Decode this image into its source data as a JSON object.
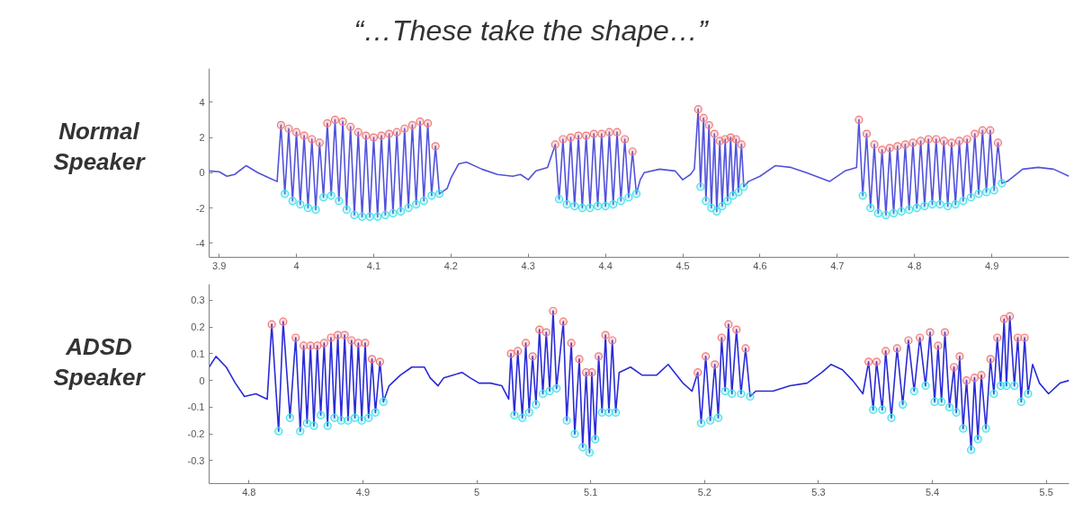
{
  "chart_data": [
    {
      "type": "line",
      "title": "“…These take the shape…”",
      "ylabel": "Normal Speaker",
      "xlim": [
        3.887,
        5.0
      ],
      "ylim": [
        -4.8,
        5.9
      ],
      "xticks": [
        3.9,
        4,
        4.1,
        4.2,
        4.3,
        4.4,
        4.5,
        4.6,
        4.7,
        4.8,
        4.9
      ],
      "yticks": [
        -4,
        -2,
        0,
        2,
        4
      ],
      "grid": false,
      "series": [
        {
          "type": "line",
          "color": "#5252dc",
          "x": [
            3.887,
            3.9,
            3.91,
            3.92,
            3.935,
            3.95,
            3.965,
            3.975,
            3.98,
            3.985,
            3.99,
            3.995,
            4.0,
            4.005,
            4.01,
            4.015,
            4.02,
            4.025,
            4.03,
            4.035,
            4.04,
            4.045,
            4.05,
            4.055,
            4.06,
            4.065,
            4.07,
            4.075,
            4.08,
            4.085,
            4.09,
            4.095,
            4.1,
            4.105,
            4.11,
            4.115,
            4.12,
            4.125,
            4.13,
            4.135,
            4.14,
            4.145,
            4.15,
            4.155,
            4.16,
            4.165,
            4.17,
            4.175,
            4.18,
            4.185,
            4.195,
            4.2,
            4.21,
            4.22,
            4.24,
            4.26,
            4.28,
            4.29,
            4.3,
            4.31,
            4.325,
            4.335,
            4.34,
            4.345,
            4.35,
            4.355,
            4.36,
            4.365,
            4.37,
            4.375,
            4.38,
            4.385,
            4.39,
            4.395,
            4.4,
            4.405,
            4.41,
            4.415,
            4.42,
            4.425,
            4.43,
            4.435,
            4.44,
            4.445,
            4.45,
            4.47,
            4.49,
            4.5,
            4.51,
            4.515,
            4.52,
            4.523,
            4.527,
            4.53,
            4.534,
            4.537,
            4.541,
            4.544,
            4.548,
            4.551,
            4.555,
            4.558,
            4.562,
            4.565,
            4.569,
            4.572,
            4.576,
            4.579,
            4.585,
            4.6,
            4.62,
            4.64,
            4.66,
            4.69,
            4.71,
            4.725,
            4.728,
            4.733,
            4.738,
            4.743,
            4.748,
            4.753,
            4.758,
            4.763,
            4.768,
            4.773,
            4.778,
            4.783,
            4.788,
            4.793,
            4.798,
            4.803,
            4.808,
            4.813,
            4.818,
            4.823,
            4.828,
            4.833,
            4.838,
            4.843,
            4.848,
            4.853,
            4.858,
            4.863,
            4.868,
            4.873,
            4.878,
            4.883,
            4.888,
            4.893,
            4.898,
            4.903,
            4.908,
            4.913,
            4.92,
            4.94,
            4.96,
            4.98,
            5.0
          ],
          "values": [
            0.1,
            0.05,
            -0.2,
            -0.1,
            0.4,
            0,
            -0.3,
            -0.5,
            2.7,
            -1.2,
            2.5,
            -1.6,
            2.3,
            -1.8,
            2.1,
            -2.0,
            1.9,
            -2.1,
            1.7,
            -1.4,
            2.8,
            -1.3,
            3.0,
            -1.6,
            2.9,
            -2.1,
            2.6,
            -2.4,
            2.3,
            -2.5,
            2.1,
            -2.5,
            2.0,
            -2.5,
            2.1,
            -2.4,
            2.2,
            -2.3,
            2.3,
            -2.2,
            2.5,
            -2.0,
            2.7,
            -1.8,
            2.9,
            -1.6,
            2.8,
            -1.3,
            1.5,
            -1.2,
            -0.9,
            -0.3,
            0.5,
            0.6,
            0.2,
            -0.1,
            -0.2,
            -0.1,
            -0.4,
            0.1,
            0.3,
            1.6,
            -1.5,
            1.9,
            -1.8,
            2.0,
            -1.9,
            2.1,
            -2.0,
            2.1,
            -2.0,
            2.2,
            -1.9,
            2.2,
            -1.9,
            2.3,
            -1.8,
            2.3,
            -1.6,
            1.9,
            -1.4,
            1.2,
            -1.2,
            -0.4,
            0,
            0.2,
            0.1,
            -0.4,
            -0.1,
            0.2,
            3.6,
            -0.8,
            3.1,
            -1.6,
            2.7,
            -2.0,
            2.2,
            -2.2,
            1.8,
            -1.9,
            1.9,
            -1.6,
            2.0,
            -1.3,
            1.9,
            -1.1,
            1.6,
            -0.8,
            -0.5,
            -0.2,
            0.4,
            0.3,
            0,
            -0.5,
            0.1,
            0.3,
            3.0,
            -1.3,
            2.2,
            -2.0,
            1.6,
            -2.3,
            1.3,
            -2.4,
            1.4,
            -2.3,
            1.5,
            -2.2,
            1.6,
            -2.1,
            1.7,
            -2.0,
            1.8,
            -1.9,
            1.9,
            -1.8,
            1.9,
            -1.8,
            1.8,
            -1.9,
            1.7,
            -1.8,
            1.8,
            -1.6,
            1.9,
            -1.4,
            2.2,
            -1.2,
            2.4,
            -1.1,
            2.4,
            -1.0,
            1.7,
            -0.6,
            -0.5,
            0.2,
            0.3,
            0.2,
            -0.2
          ]
        },
        {
          "type": "scatter",
          "marker": "circle",
          "color": "#f07878",
          "x": [
            3.98,
            3.99,
            4.0,
            4.01,
            4.02,
            4.03,
            4.04,
            4.05,
            4.06,
            4.07,
            4.08,
            4.09,
            4.1,
            4.11,
            4.12,
            4.13,
            4.14,
            4.15,
            4.16,
            4.17,
            4.18,
            4.335,
            4.345,
            4.355,
            4.365,
            4.375,
            4.385,
            4.395,
            4.405,
            4.415,
            4.425,
            4.435,
            4.52,
            4.527,
            4.534,
            4.541,
            4.548,
            4.555,
            4.562,
            4.569,
            4.576,
            4.728,
            4.738,
            4.748,
            4.758,
            4.768,
            4.778,
            4.788,
            4.798,
            4.808,
            4.818,
            4.828,
            4.838,
            4.848,
            4.858,
            4.868,
            4.878,
            4.888,
            4.898,
            4.908
          ],
          "values": [
            2.7,
            2.5,
            2.3,
            2.1,
            1.9,
            1.7,
            2.8,
            3.0,
            2.9,
            2.6,
            2.3,
            2.1,
            2.0,
            2.1,
            2.2,
            2.3,
            2.5,
            2.7,
            2.9,
            2.8,
            1.5,
            1.6,
            1.9,
            2.0,
            2.1,
            2.1,
            2.2,
            2.2,
            2.3,
            2.3,
            1.9,
            1.2,
            3.6,
            3.1,
            2.7,
            2.2,
            1.8,
            1.9,
            2.0,
            1.9,
            1.6,
            3.0,
            2.2,
            1.6,
            1.3,
            1.4,
            1.5,
            1.6,
            1.7,
            1.8,
            1.9,
            1.9,
            1.8,
            1.7,
            1.8,
            1.9,
            2.2,
            2.4,
            2.4,
            1.7
          ]
        },
        {
          "type": "scatter",
          "marker": "circle",
          "color": "#40e0e8",
          "x": [
            3.985,
            3.995,
            4.005,
            4.015,
            4.025,
            4.035,
            4.045,
            4.055,
            4.065,
            4.075,
            4.085,
            4.095,
            4.105,
            4.115,
            4.125,
            4.135,
            4.145,
            4.155,
            4.165,
            4.175,
            4.185,
            4.34,
            4.35,
            4.36,
            4.37,
            4.38,
            4.39,
            4.4,
            4.41,
            4.42,
            4.43,
            4.44,
            4.523,
            4.53,
            4.537,
            4.544,
            4.551,
            4.558,
            4.565,
            4.572,
            4.579,
            4.733,
            4.743,
            4.753,
            4.763,
            4.773,
            4.783,
            4.793,
            4.803,
            4.813,
            4.823,
            4.833,
            4.843,
            4.853,
            4.863,
            4.873,
            4.883,
            4.893,
            4.903,
            4.913
          ],
          "values": [
            -1.2,
            -1.6,
            -1.8,
            -2.0,
            -2.1,
            -1.4,
            -1.3,
            -1.6,
            -2.1,
            -2.4,
            -2.5,
            -2.5,
            -2.5,
            -2.4,
            -2.3,
            -2.2,
            -2.0,
            -1.8,
            -1.6,
            -1.3,
            -1.2,
            -1.5,
            -1.8,
            -1.9,
            -2.0,
            -2.0,
            -1.9,
            -1.9,
            -1.8,
            -1.6,
            -1.4,
            -1.2,
            -0.8,
            -1.6,
            -2.0,
            -2.2,
            -1.9,
            -1.6,
            -1.3,
            -1.1,
            -0.8,
            -1.3,
            -2.0,
            -2.3,
            -2.4,
            -2.3,
            -2.2,
            -2.1,
            -2.0,
            -1.9,
            -1.8,
            -1.8,
            -1.9,
            -1.8,
            -1.6,
            -1.4,
            -1.2,
            -1.1,
            -1.0,
            -0.6
          ]
        }
      ]
    },
    {
      "type": "line",
      "ylabel": "ADSD Speaker",
      "xlim": [
        4.765,
        5.52
      ],
      "ylim": [
        -0.386,
        0.36
      ],
      "xticks": [
        4.8,
        4.9,
        5,
        5.1,
        5.2,
        5.3,
        5.4,
        5.5
      ],
      "yticks": [
        -0.3,
        -0.2,
        -0.1,
        0,
        0.1,
        0.2,
        0.3
      ],
      "grid": false,
      "series": [
        {
          "type": "line",
          "color": "#2a2ad8",
          "x": [
            4.765,
            4.771,
            4.78,
            4.788,
            4.796,
            4.806,
            4.816,
            4.82,
            4.826,
            4.83,
            4.836,
            4.841,
            4.845,
            4.848,
            4.851,
            4.854,
            4.857,
            4.86,
            4.863,
            4.866,
            4.869,
            4.872,
            4.875,
            4.878,
            4.881,
            4.884,
            4.887,
            4.89,
            4.893,
            4.896,
            4.899,
            4.902,
            4.905,
            4.908,
            4.911,
            4.915,
            4.918,
            4.923,
            4.933,
            4.943,
            4.954,
            4.959,
            4.966,
            4.971,
            4.979,
            4.987,
            4.994,
            5.002,
            5.012,
            5.022,
            5.028,
            5.03,
            5.033,
            5.036,
            5.04,
            5.043,
            5.046,
            5.049,
            5.052,
            5.055,
            5.058,
            5.061,
            5.064,
            5.067,
            5.07,
            5.076,
            5.079,
            5.083,
            5.086,
            5.09,
            5.093,
            5.096,
            5.099,
            5.101,
            5.104,
            5.107,
            5.11,
            5.113,
            5.116,
            5.119,
            5.122,
            5.125,
            5.135,
            5.145,
            5.158,
            5.168,
            5.181,
            5.189,
            5.194,
            5.197,
            5.201,
            5.205,
            5.209,
            5.212,
            5.215,
            5.218,
            5.221,
            5.224,
            5.228,
            5.232,
            5.236,
            5.24,
            5.245,
            5.26,
            5.275,
            5.29,
            5.303,
            5.311,
            5.321,
            5.33,
            5.339,
            5.344,
            5.348,
            5.351,
            5.356,
            5.359,
            5.364,
            5.369,
            5.374,
            5.379,
            5.384,
            5.389,
            5.394,
            5.398,
            5.402,
            5.405,
            5.408,
            5.411,
            5.415,
            5.419,
            5.421,
            5.424,
            5.427,
            5.43,
            5.434,
            5.437,
            5.44,
            5.443,
            5.447,
            5.451,
            5.454,
            5.457,
            5.46,
            5.463,
            5.465,
            5.468,
            5.472,
            5.475,
            5.478,
            5.481,
            5.484,
            5.488,
            5.494,
            5.502,
            5.512,
            5.52
          ],
          "values": [
            0.05,
            0.09,
            0.05,
            -0.01,
            -0.06,
            -0.05,
            -0.07,
            0.21,
            -0.19,
            0.22,
            -0.14,
            0.16,
            -0.19,
            0.13,
            -0.16,
            0.13,
            -0.17,
            0.13,
            -0.13,
            0.14,
            -0.17,
            0.16,
            -0.14,
            0.17,
            -0.15,
            0.17,
            -0.15,
            0.15,
            -0.14,
            0.14,
            -0.15,
            0.14,
            -0.14,
            0.08,
            -0.12,
            0.07,
            -0.08,
            -0.02,
            0.02,
            0.05,
            0.05,
            0.01,
            -0.02,
            0.01,
            0.02,
            0.03,
            0.01,
            -0.01,
            -0.01,
            -0.02,
            -0.07,
            0.1,
            -0.13,
            0.11,
            -0.14,
            0.14,
            -0.12,
            0.09,
            -0.09,
            0.19,
            -0.05,
            0.18,
            -0.04,
            0.26,
            -0.03,
            0.22,
            -0.15,
            0.14,
            -0.2,
            0.08,
            -0.25,
            0.03,
            -0.27,
            0.03,
            -0.22,
            0.09,
            -0.12,
            0.17,
            -0.12,
            0.15,
            -0.12,
            0.03,
            0.05,
            0.02,
            0.02,
            0.06,
            -0.01,
            -0.04,
            0.03,
            -0.16,
            0.09,
            -0.15,
            0.06,
            -0.14,
            0.16,
            -0.04,
            0.21,
            -0.05,
            0.19,
            -0.05,
            0.12,
            -0.06,
            -0.04,
            -0.04,
            -0.02,
            -0.01,
            0.03,
            0.06,
            0.04,
            0.0,
            -0.05,
            0.07,
            -0.11,
            0.07,
            -0.11,
            0.11,
            -0.14,
            0.12,
            -0.09,
            0.15,
            -0.04,
            0.16,
            -0.02,
            0.18,
            -0.08,
            0.13,
            -0.08,
            0.18,
            -0.1,
            0.05,
            -0.12,
            0.09,
            -0.18,
            0.0,
            -0.26,
            0.01,
            -0.22,
            0.02,
            -0.18,
            0.08,
            -0.05,
            0.16,
            -0.02,
            0.23,
            -0.02,
            0.24,
            -0.02,
            0.16,
            -0.08,
            0.16,
            -0.05,
            0.06,
            -0.01,
            -0.05,
            -0.01,
            0.0
          ]
        },
        {
          "type": "scatter",
          "marker": "circle",
          "color": "#f07878",
          "x": [
            4.82,
            4.83,
            4.841,
            4.848,
            4.854,
            4.86,
            4.866,
            4.872,
            4.878,
            4.884,
            4.89,
            4.896,
            4.902,
            4.908,
            4.915,
            5.03,
            5.036,
            5.043,
            5.049,
            5.055,
            5.061,
            5.067,
            5.076,
            5.083,
            5.09,
            5.096,
            5.101,
            5.107,
            5.113,
            5.119,
            5.194,
            5.201,
            5.209,
            5.215,
            5.221,
            5.228,
            5.236,
            5.344,
            5.351,
            5.359,
            5.369,
            5.379,
            5.389,
            5.398,
            5.405,
            5.411,
            5.419,
            5.424,
            5.43,
            5.437,
            5.443,
            5.451,
            5.457,
            5.463,
            5.468,
            5.475,
            5.481
          ],
          "values": [
            0.21,
            0.22,
            0.16,
            0.13,
            0.13,
            0.13,
            0.14,
            0.16,
            0.17,
            0.17,
            0.15,
            0.14,
            0.14,
            0.08,
            0.07,
            0.1,
            0.11,
            0.14,
            0.09,
            0.19,
            0.18,
            0.26,
            0.22,
            0.14,
            0.08,
            0.03,
            0.03,
            0.09,
            0.17,
            0.15,
            0.03,
            0.09,
            0.06,
            0.16,
            0.21,
            0.19,
            0.12,
            0.07,
            0.07,
            0.11,
            0.12,
            0.15,
            0.16,
            0.18,
            0.13,
            0.18,
            0.05,
            0.09,
            0.0,
            0.01,
            0.02,
            0.08,
            0.16,
            0.23,
            0.24,
            0.16,
            0.16
          ]
        },
        {
          "type": "scatter",
          "marker": "circle",
          "color": "#40e0e8",
          "x": [
            4.826,
            4.836,
            4.845,
            4.851,
            4.857,
            4.863,
            4.869,
            4.875,
            4.881,
            4.887,
            4.893,
            4.899,
            4.905,
            4.911,
            4.918,
            5.033,
            5.04,
            5.046,
            5.052,
            5.058,
            5.064,
            5.07,
            5.079,
            5.086,
            5.093,
            5.099,
            5.104,
            5.11,
            5.116,
            5.122,
            5.197,
            5.205,
            5.212,
            5.218,
            5.224,
            5.232,
            5.24,
            5.348,
            5.356,
            5.364,
            5.374,
            5.384,
            5.394,
            5.402,
            5.408,
            5.415,
            5.421,
            5.427,
            5.434,
            5.44,
            5.447,
            5.454,
            5.46,
            5.465,
            5.472,
            5.478,
            5.484
          ],
          "values": [
            -0.19,
            -0.14,
            -0.19,
            -0.16,
            -0.17,
            -0.13,
            -0.17,
            -0.14,
            -0.15,
            -0.15,
            -0.14,
            -0.15,
            -0.14,
            -0.12,
            -0.08,
            -0.13,
            -0.14,
            -0.12,
            -0.09,
            -0.05,
            -0.04,
            -0.03,
            -0.15,
            -0.2,
            -0.25,
            -0.27,
            -0.22,
            -0.12,
            -0.12,
            -0.12,
            -0.16,
            -0.15,
            -0.14,
            -0.04,
            -0.05,
            -0.05,
            -0.06,
            -0.11,
            -0.11,
            -0.14,
            -0.09,
            -0.04,
            -0.02,
            -0.08,
            -0.08,
            -0.1,
            -0.12,
            -0.18,
            -0.26,
            -0.22,
            -0.18,
            -0.05,
            -0.02,
            -0.02,
            -0.02,
            -0.08,
            -0.05
          ]
        }
      ]
    }
  ]
}
